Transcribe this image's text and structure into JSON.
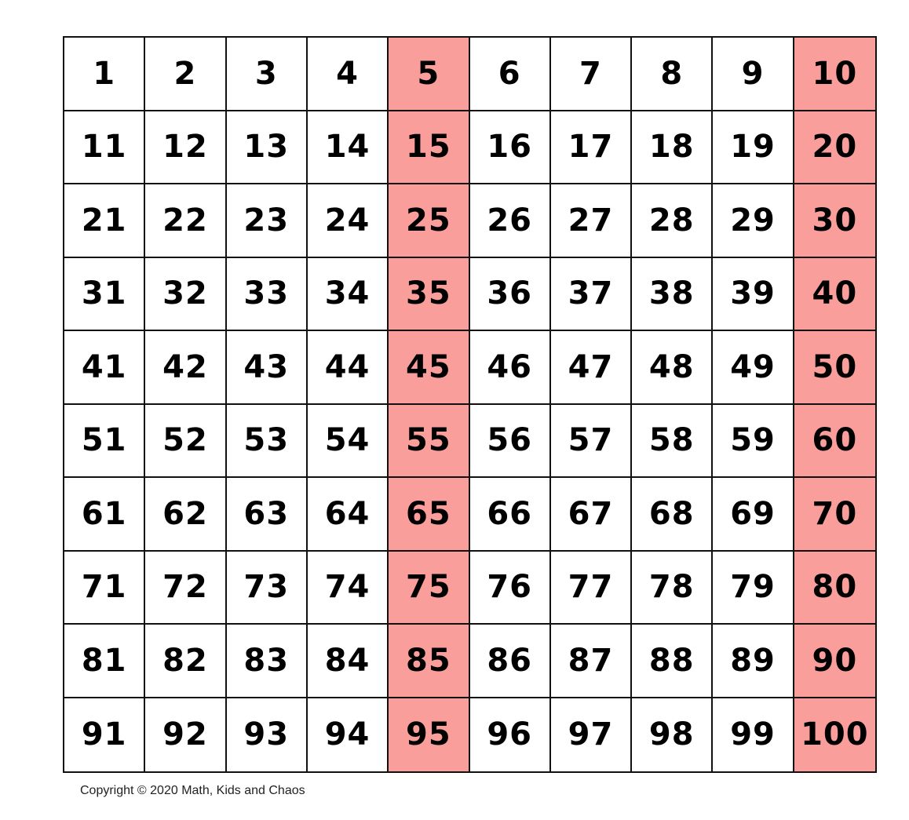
{
  "rows": [
    [
      "1",
      "2",
      "3",
      "4",
      "5",
      "6",
      "7",
      "8",
      "9",
      "10"
    ],
    [
      "11",
      "12",
      "13",
      "14",
      "15",
      "16",
      "17",
      "18",
      "19",
      "20"
    ],
    [
      "21",
      "22",
      "23",
      "24",
      "25",
      "26",
      "27",
      "28",
      "29",
      "30"
    ],
    [
      "31",
      "32",
      "33",
      "34",
      "35",
      "36",
      "37",
      "38",
      "39",
      "40"
    ],
    [
      "41",
      "42",
      "43",
      "44",
      "45",
      "46",
      "47",
      "48",
      "49",
      "50"
    ],
    [
      "51",
      "52",
      "53",
      "54",
      "55",
      "56",
      "57",
      "58",
      "59",
      "60"
    ],
    [
      "61",
      "62",
      "63",
      "64",
      "65",
      "66",
      "67",
      "68",
      "69",
      "70"
    ],
    [
      "71",
      "72",
      "73",
      "74",
      "75",
      "76",
      "77",
      "78",
      "79",
      "80"
    ],
    [
      "81",
      "82",
      "83",
      "84",
      "85",
      "86",
      "87",
      "88",
      "89",
      "90"
    ],
    [
      "91",
      "92",
      "93",
      "94",
      "95",
      "96",
      "97",
      "98",
      "99",
      "100"
    ]
  ],
  "highlighted_columns": [
    5,
    10
  ],
  "colors": {
    "highlight": "#fa9e9c",
    "background": "#ffffff",
    "grid_line": "#111111"
  },
  "copyright": "Copyright © 2020 Math, Kids and Chaos"
}
